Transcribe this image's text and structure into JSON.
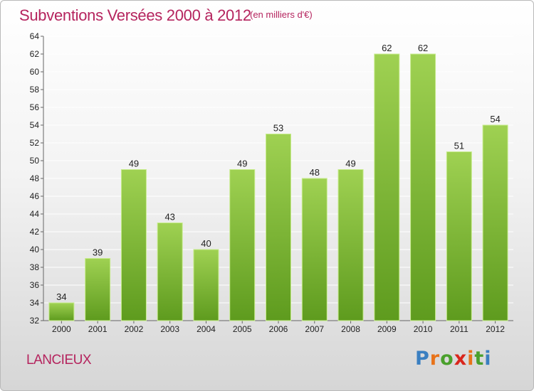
{
  "header": {
    "title": "Subventions Versées 2000 à 2012",
    "unit_note": "(en milliers d'€)"
  },
  "footer": {
    "place": "LANCIEUX",
    "brand": "Proxiti",
    "brand_colors": [
      "#3a7fc1",
      "#e8731a",
      "#4aa02c",
      "#d9261c",
      "#e8731a",
      "#4aa02c",
      "#3a7fc1"
    ]
  },
  "colors": {
    "title": "#b5245e",
    "bar_top": "#9fd152",
    "bar_bottom": "#5e9b1e",
    "bar_edge": "#c8ec8e",
    "grid": "#ffffff",
    "axis": "#666666",
    "text": "#222222"
  },
  "chart_data": {
    "type": "bar",
    "title": "Subventions Versées 2000 à 2012",
    "subtitle": "(en milliers d'€)",
    "categories": [
      "2000",
      "2001",
      "2002",
      "2003",
      "2004",
      "2005",
      "2006",
      "2007",
      "2008",
      "2009",
      "2010",
      "2011",
      "2012"
    ],
    "values": [
      34,
      39,
      49,
      43,
      40,
      49,
      53,
      48,
      49,
      62,
      62,
      51,
      54
    ],
    "ylim": [
      32,
      64
    ],
    "yticks": [
      32,
      34,
      36,
      38,
      40,
      42,
      44,
      46,
      48,
      50,
      52,
      54,
      56,
      58,
      60,
      62,
      64
    ],
    "xlabel": "",
    "ylabel": "",
    "grid": true,
    "legend": "none",
    "data_labels": true
  }
}
